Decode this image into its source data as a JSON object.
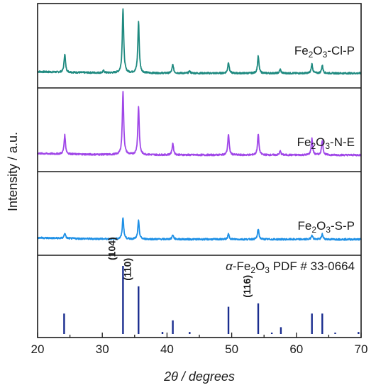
{
  "chart_data": {
    "type": "line",
    "xlabel": "2θ / degrees",
    "ylabel": "Intensity / a.u.",
    "xlim": [
      20,
      70
    ],
    "x_ticks": [
      "20",
      "30",
      "40",
      "50",
      "60",
      "70"
    ],
    "panels": [
      {
        "name_parts": [
          "Fe",
          "2",
          "O",
          "3",
          "-Cl-P"
        ],
        "color": "#1f8a80",
        "baseline": 0.05,
        "peaks": [
          {
            "x": 24.2,
            "h": 0.28
          },
          {
            "x": 30.2,
            "h": 0.03
          },
          {
            "x": 33.2,
            "h": 0.98
          },
          {
            "x": 35.6,
            "h": 0.78
          },
          {
            "x": 40.9,
            "h": 0.13
          },
          {
            "x": 43.5,
            "h": 0.03
          },
          {
            "x": 49.5,
            "h": 0.17
          },
          {
            "x": 54.1,
            "h": 0.26
          },
          {
            "x": 57.5,
            "h": 0.06
          },
          {
            "x": 62.4,
            "h": 0.14
          },
          {
            "x": 64.0,
            "h": 0.12
          }
        ]
      },
      {
        "name_parts": [
          "Fe",
          "2",
          "O",
          "3",
          "-N-E"
        ],
        "color": "#a047e8",
        "baseline": 0.08,
        "peaks": [
          {
            "x": 24.2,
            "h": 0.29
          },
          {
            "x": 33.2,
            "h": 0.96
          },
          {
            "x": 35.6,
            "h": 0.74
          },
          {
            "x": 40.9,
            "h": 0.18
          },
          {
            "x": 49.5,
            "h": 0.32
          },
          {
            "x": 54.1,
            "h": 0.32
          },
          {
            "x": 57.5,
            "h": 0.06
          },
          {
            "x": 62.4,
            "h": 0.25
          },
          {
            "x": 64.0,
            "h": 0.23
          }
        ]
      },
      {
        "name_parts": [
          "Fe",
          "2",
          "O",
          "3",
          "-S-P"
        ],
        "color": "#1e90e6",
        "baseline": 0.07,
        "peaks": [
          {
            "x": 24.2,
            "h": 0.08
          },
          {
            "x": 33.2,
            "h": 0.33
          },
          {
            "x": 35.6,
            "h": 0.28
          },
          {
            "x": 40.9,
            "h": 0.07
          },
          {
            "x": 49.5,
            "h": 0.08
          },
          {
            "x": 54.1,
            "h": 0.16
          },
          {
            "x": 62.4,
            "h": 0.07
          },
          {
            "x": 64.0,
            "h": 0.08
          }
        ]
      }
    ],
    "reference": {
      "label": "α-Fe2O3 PDF # 33-0664",
      "label_parts": [
        "α",
        "-Fe",
        "2",
        "O",
        "3",
        " PDF # 33-0664"
      ],
      "color": "#1a2d8f",
      "lines": [
        {
          "x": 24.1,
          "h": 0.3
        },
        {
          "x": 33.2,
          "h": 1.0
        },
        {
          "x": 35.6,
          "h": 0.7
        },
        {
          "x": 39.3,
          "h": 0.03
        },
        {
          "x": 40.9,
          "h": 0.2
        },
        {
          "x": 43.5,
          "h": 0.03
        },
        {
          "x": 49.5,
          "h": 0.4
        },
        {
          "x": 54.1,
          "h": 0.45
        },
        {
          "x": 56.2,
          "h": 0.02
        },
        {
          "x": 57.6,
          "h": 0.1
        },
        {
          "x": 62.4,
          "h": 0.3
        },
        {
          "x": 64.0,
          "h": 0.3
        },
        {
          "x": 66.0,
          "h": 0.02
        },
        {
          "x": 69.6,
          "h": 0.03
        }
      ],
      "annotations": [
        {
          "text": "(104)",
          "x": 33.2
        },
        {
          "text": "(110)",
          "x": 35.6
        },
        {
          "text": "(116)",
          "x": 54.1
        }
      ]
    }
  }
}
